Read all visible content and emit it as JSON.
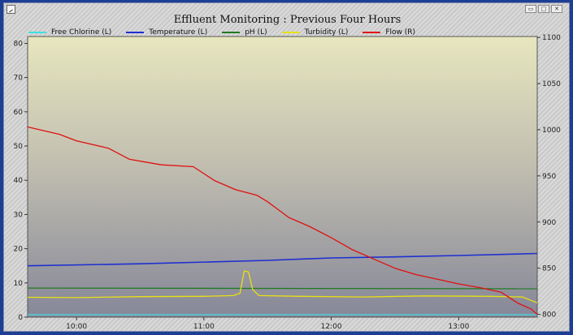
{
  "window": {
    "buttons": [
      "▭",
      "□",
      "✕"
    ]
  },
  "chart_data": {
    "type": "line",
    "title": "Effluent Monitoring : Previous Four Hours",
    "x_ticks": [
      "10:00",
      "11:00",
      "12:00",
      "13:00"
    ],
    "left_axis": {
      "ylim": [
        0,
        82
      ],
      "ticks": [
        0,
        10,
        20,
        30,
        40,
        50,
        60,
        70,
        80
      ]
    },
    "right_axis": {
      "ylim": [
        797,
        1101
      ],
      "ticks": [
        800,
        850,
        900,
        950,
        1000,
        1050,
        1100
      ]
    },
    "series": [
      {
        "name": "Free Chlorine (L)",
        "axis": "left",
        "color": "#40e0e0",
        "points": [
          [
            "09:37",
            0.7
          ],
          [
            "13:37",
            0.7
          ]
        ]
      },
      {
        "name": "Temperature (L)",
        "axis": "left",
        "color": "#1f2fd0",
        "points": [
          [
            "09:37",
            15.0
          ],
          [
            "10:30",
            15.6
          ],
          [
            "11:30",
            16.6
          ],
          [
            "12:00",
            17.3
          ],
          [
            "12:30",
            17.6
          ],
          [
            "13:00",
            18.0
          ],
          [
            "13:37",
            18.6
          ]
        ]
      },
      {
        "name": "pH (L)",
        "axis": "left",
        "color": "#1f7a1f",
        "points": [
          [
            "09:37",
            8.5
          ],
          [
            "13:37",
            8.3
          ]
        ]
      },
      {
        "name": "Turbidity (L)",
        "axis": "left",
        "color": "#e8e010",
        "points": [
          [
            "09:37",
            5.8
          ],
          [
            "10:00",
            5.7
          ],
          [
            "10:30",
            6.0
          ],
          [
            "11:00",
            6.1
          ],
          [
            "11:14",
            6.3
          ],
          [
            "11:17",
            7.0
          ],
          [
            "11:19",
            13.5
          ],
          [
            "11:21",
            13.2
          ],
          [
            "11:23",
            8.0
          ],
          [
            "11:26",
            6.3
          ],
          [
            "11:45",
            6.1
          ],
          [
            "12:15",
            5.9
          ],
          [
            "12:45",
            6.2
          ],
          [
            "13:15",
            6.1
          ],
          [
            "13:30",
            5.9
          ],
          [
            "13:37",
            4.2
          ]
        ]
      },
      {
        "name": "Flow (R)",
        "axis": "right",
        "color": "#e01010",
        "points": [
          [
            "09:37",
            1003
          ],
          [
            "09:52",
            995
          ],
          [
            "10:00",
            988
          ],
          [
            "10:15",
            980
          ],
          [
            "10:25",
            968
          ],
          [
            "10:40",
            962
          ],
          [
            "10:55",
            960
          ],
          [
            "11:05",
            945
          ],
          [
            "11:15",
            935
          ],
          [
            "11:25",
            929
          ],
          [
            "11:30",
            922
          ],
          [
            "11:40",
            905
          ],
          [
            "11:50",
            895
          ],
          [
            "12:00",
            883
          ],
          [
            "12:10",
            870
          ],
          [
            "12:20",
            860
          ],
          [
            "12:30",
            850
          ],
          [
            "12:40",
            843
          ],
          [
            "12:50",
            838
          ],
          [
            "13:00",
            833
          ],
          [
            "13:10",
            829
          ],
          [
            "13:20",
            824
          ],
          [
            "13:28",
            812
          ],
          [
            "13:34",
            806
          ],
          [
            "13:37",
            800
          ]
        ]
      }
    ]
  }
}
